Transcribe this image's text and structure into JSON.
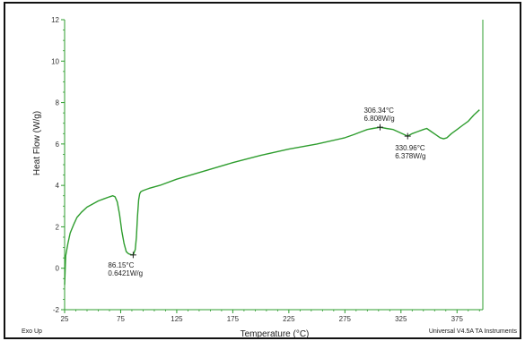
{
  "chart_data": {
    "type": "line",
    "title": "",
    "xlabel": "Temperature (°C)",
    "ylabel": "Heat Flow (W/g)",
    "xlim": [
      25,
      398
    ],
    "ylim": [
      -2,
      12
    ],
    "x_ticks": [
      25,
      75,
      125,
      175,
      225,
      275,
      325,
      375
    ],
    "y_ticks": [
      -2,
      0,
      2,
      4,
      6,
      8,
      10,
      12
    ],
    "line_color": "#2e9d2e",
    "series": [
      {
        "x": [
          25,
          26,
          28,
          30,
          33,
          36,
          40,
          45,
          50,
          55,
          60,
          65,
          68,
          70,
          72,
          74,
          76,
          78,
          80,
          82,
          84,
          86.15,
          88,
          89,
          90,
          91,
          92,
          93,
          95,
          100,
          110,
          125,
          150,
          175,
          200,
          225,
          250,
          275,
          283,
          290,
          295,
          300,
          306.34,
          312,
          318,
          322,
          326,
          330.96,
          335,
          340,
          345,
          348,
          352,
          356,
          360,
          363,
          366,
          370,
          375,
          380,
          385,
          390,
          395
        ],
        "y": [
          -0.8,
          0.6,
          1.2,
          1.7,
          2.1,
          2.45,
          2.7,
          2.95,
          3.1,
          3.25,
          3.35,
          3.45,
          3.5,
          3.45,
          3.2,
          2.6,
          1.8,
          1.2,
          0.8,
          0.7,
          0.66,
          0.6421,
          0.9,
          1.5,
          2.5,
          3.3,
          3.6,
          3.7,
          3.75,
          3.85,
          4.0,
          4.3,
          4.7,
          5.1,
          5.45,
          5.75,
          6.0,
          6.3,
          6.45,
          6.6,
          6.7,
          6.75,
          6.808,
          6.75,
          6.7,
          6.6,
          6.5,
          6.378,
          6.5,
          6.6,
          6.7,
          6.75,
          6.6,
          6.45,
          6.3,
          6.25,
          6.3,
          6.5,
          6.7,
          6.9,
          7.1,
          7.4,
          7.65
        ]
      }
    ],
    "annotations": [
      {
        "x": 86.15,
        "y": 0.6421,
        "line1": "86.15°C",
        "line2": "0.6421W/g",
        "position": "below"
      },
      {
        "x": 306.34,
        "y": 6.808,
        "line1": "306.34°C",
        "line2": "6.808W/g",
        "position": "above"
      },
      {
        "x": 330.96,
        "y": 6.378,
        "line1": "330.96°C",
        "line2": "6.378W/g",
        "position": "below"
      }
    ],
    "footer_left": "Exo Up",
    "footer_right": "Universal V4.5A TA Instruments",
    "grid": false
  }
}
